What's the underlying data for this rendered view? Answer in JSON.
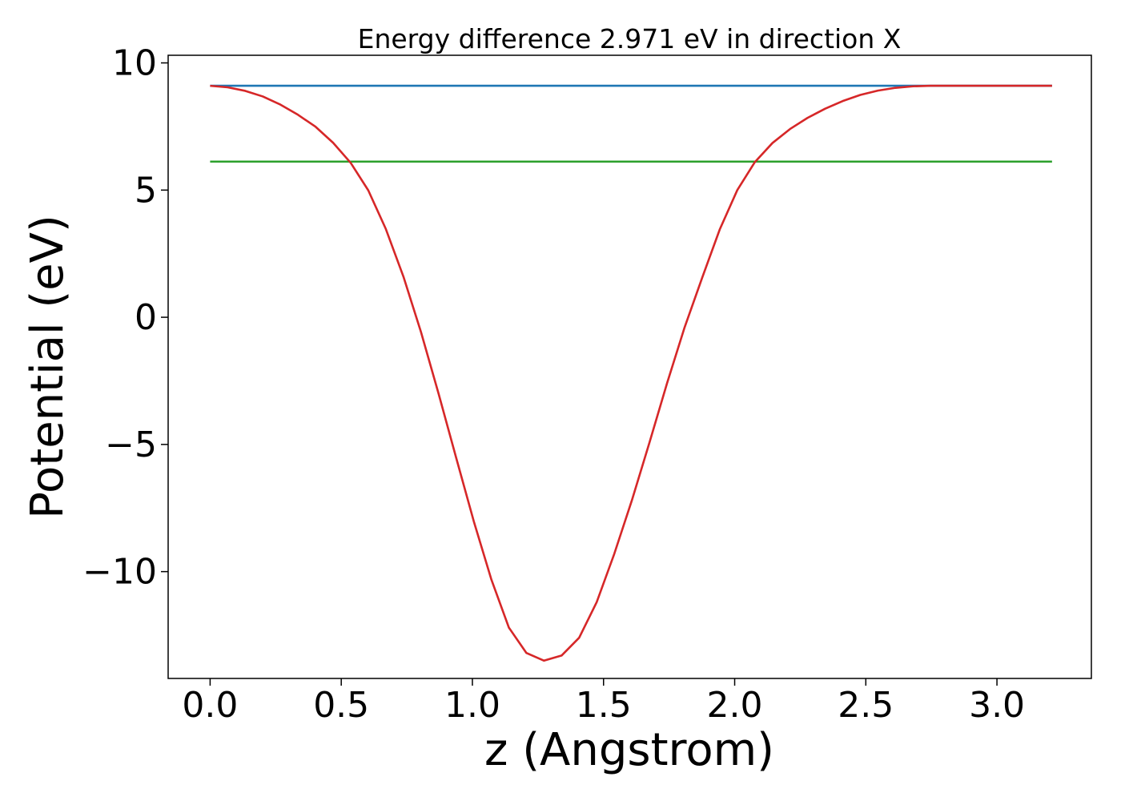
{
  "chart_data": {
    "type": "line",
    "title": "Energy difference 2.971 eV in direction X",
    "xlabel": "z (Angstrom)",
    "ylabel": "Potential (eV)",
    "xlim": [
      -0.16,
      3.36
    ],
    "ylim": [
      -14.2,
      10.3
    ],
    "xticks": [
      0.0,
      0.5,
      1.0,
      1.5,
      2.0,
      2.5,
      3.0
    ],
    "xtick_labels": [
      "0.0",
      "0.5",
      "1.0",
      "1.5",
      "2.0",
      "2.5",
      "3.0"
    ],
    "yticks": [
      10,
      5,
      0,
      -5,
      -10
    ],
    "ytick_labels": [
      "10",
      "5",
      "0",
      "−5",
      "−10"
    ],
    "grid": false,
    "legend": "none",
    "series": [
      {
        "color": "#1f77b4",
        "style": "horizontal",
        "x": [
          0.0,
          3.21
        ],
        "y": [
          9.1,
          9.1
        ]
      },
      {
        "color": "#2ca02c",
        "style": "horizontal",
        "x": [
          0.0,
          3.21
        ],
        "y": [
          6.12,
          6.12
        ]
      },
      {
        "color": "#d62728",
        "style": "curve",
        "x": [
          0.0,
          0.067,
          0.134,
          0.201,
          0.268,
          0.335,
          0.402,
          0.469,
          0.536,
          0.603,
          0.67,
          0.737,
          0.804,
          0.871,
          0.938,
          1.005,
          1.072,
          1.139,
          1.206,
          1.273,
          1.34,
          1.407,
          1.474,
          1.541,
          1.608,
          1.675,
          1.742,
          1.809,
          1.876,
          1.943,
          2.01,
          2.077,
          2.144,
          2.211,
          2.278,
          2.345,
          2.412,
          2.479,
          2.546,
          2.613,
          2.68,
          2.747,
          2.814,
          2.881,
          2.948,
          3.015,
          3.082,
          3.149,
          3.21
        ],
        "y": [
          9.1,
          9.04,
          8.9,
          8.68,
          8.36,
          7.96,
          7.49,
          6.86,
          6.07,
          4.99,
          3.47,
          1.6,
          -0.58,
          -3.0,
          -5.52,
          -8.01,
          -10.3,
          -12.2,
          -13.2,
          -13.5,
          -13.3,
          -12.6,
          -11.2,
          -9.3,
          -7.2,
          -4.93,
          -2.6,
          -0.4,
          1.55,
          3.45,
          5.0,
          6.1,
          6.85,
          7.4,
          7.84,
          8.2,
          8.5,
          8.74,
          8.91,
          9.02,
          9.08,
          9.1,
          9.1,
          9.1,
          9.1,
          9.1,
          9.1,
          9.1,
          9.1
        ]
      }
    ]
  }
}
